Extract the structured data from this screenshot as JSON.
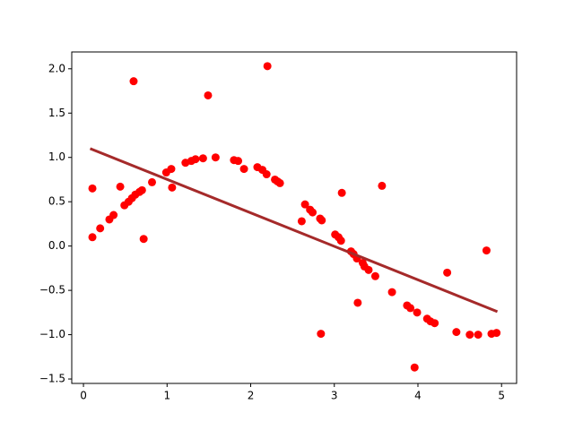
{
  "chart_data": {
    "type": "scatter",
    "xlim": [
      -0.14,
      5.18
    ],
    "ylim": [
      -1.55,
      2.19
    ],
    "xticks": [
      0,
      1,
      2,
      3,
      4,
      5
    ],
    "yticks": [
      {
        "value": -1.5,
        "label": "−1.5"
      },
      {
        "value": -1.0,
        "label": "−1.0"
      },
      {
        "value": -0.5,
        "label": "−0.5"
      },
      {
        "value": 0.0,
        "label": "0.0"
      },
      {
        "value": 0.5,
        "label": "0.5"
      },
      {
        "value": 1.0,
        "label": "1.0"
      },
      {
        "value": 1.5,
        "label": "1.5"
      },
      {
        "value": 2.0,
        "label": "2.0"
      }
    ],
    "series": [
      {
        "type": "scatter",
        "color": "#ff0000",
        "x": [
          0.107,
          0.107,
          0.2,
          0.31,
          0.36,
          0.44,
          0.49,
          0.54,
          0.58,
          0.6,
          0.62,
          0.67,
          0.7,
          0.72,
          0.82,
          0.99,
          1.05,
          1.06,
          1.22,
          1.29,
          1.34,
          1.43,
          1.49,
          1.58,
          1.8,
          1.85,
          1.92,
          2.08,
          2.14,
          2.19,
          2.2,
          2.29,
          2.32,
          2.35,
          2.61,
          2.65,
          2.71,
          2.74,
          2.83,
          2.85,
          2.84,
          3.01,
          3.05,
          3.08,
          3.09,
          3.2,
          3.23,
          3.27,
          3.28,
          3.34,
          3.36,
          3.41,
          3.49,
          3.57,
          3.69,
          3.87,
          3.91,
          3.96,
          3.99,
          4.11,
          4.15,
          4.2,
          4.35,
          4.46,
          4.62,
          4.72,
          4.82,
          4.88,
          4.94
        ],
        "values": [
          0.65,
          0.1,
          0.2,
          0.3,
          0.35,
          0.67,
          0.46,
          0.5,
          0.54,
          1.86,
          0.58,
          0.61,
          0.63,
          0.08,
          0.72,
          0.83,
          0.87,
          0.66,
          0.94,
          0.96,
          0.98,
          0.99,
          1.7,
          1.0,
          0.97,
          0.96,
          0.87,
          0.89,
          0.86,
          0.81,
          2.03,
          0.75,
          0.73,
          0.71,
          0.28,
          0.47,
          0.41,
          0.38,
          0.31,
          0.29,
          -0.99,
          0.13,
          0.1,
          0.06,
          0.6,
          -0.06,
          -0.09,
          -0.14,
          -0.64,
          -0.19,
          -0.23,
          -0.27,
          -0.34,
          0.68,
          -0.52,
          -0.67,
          -0.7,
          -1.37,
          -0.75,
          -0.82,
          -0.85,
          -0.87,
          -0.3,
          -0.97,
          -1.0,
          -1.0,
          -0.05,
          -0.99,
          -0.98
        ]
      },
      {
        "type": "line",
        "color": "#a52a2a",
        "x": [
          0.08,
          4.95
        ],
        "values": [
          1.1,
          -0.74
        ]
      }
    ]
  }
}
